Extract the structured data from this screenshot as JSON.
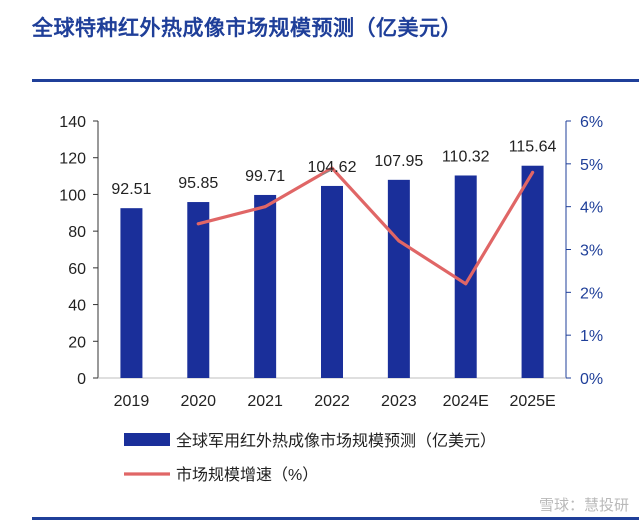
{
  "title": "全球特种红外热成像市场规模预测（亿美元）",
  "watermark": "雪球：慧投研",
  "chart_data": {
    "type": "bar",
    "categories": [
      "2019",
      "2020",
      "2021",
      "2022",
      "2023",
      "2024E",
      "2025E"
    ],
    "series": [
      {
        "name": "全球军用红外热成像市场规模预测（亿美元）",
        "type": "bar",
        "axis": "left",
        "values": [
          92.51,
          95.85,
          99.71,
          104.62,
          107.95,
          110.32,
          115.64
        ],
        "labels": [
          "92.51",
          "95.85",
          "99.71",
          "104.62",
          "107.95",
          "110.32",
          "115.64"
        ]
      },
      {
        "name": "市场规模增速（%）",
        "type": "line",
        "axis": "right",
        "values": [
          null,
          3.6,
          4.0,
          4.9,
          3.2,
          2.2,
          4.8
        ]
      }
    ],
    "yleft": {
      "min": 0,
      "max": 140,
      "ticks": [
        "0",
        "20",
        "40",
        "60",
        "80",
        "100",
        "120",
        "140"
      ]
    },
    "yright": {
      "min": 0,
      "max": 6,
      "ticks": [
        "0%",
        "1%",
        "2%",
        "3%",
        "4%",
        "5%",
        "6%"
      ]
    },
    "grid": false,
    "legend_position": "bottom-left",
    "colors": {
      "bar": "#1A2F9A",
      "line": "#E06666",
      "axis_left": "#333333",
      "axis_right": "#1F3F99",
      "title": "#1F3F99"
    }
  }
}
